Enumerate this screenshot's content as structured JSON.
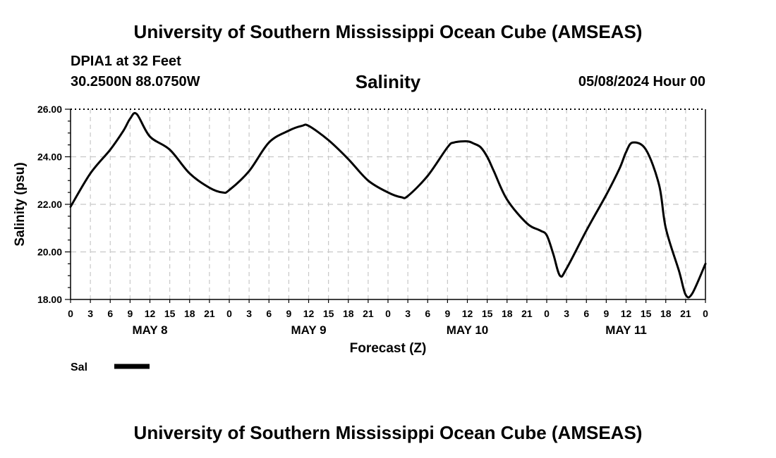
{
  "header": {
    "title": "University of Southern Mississippi Ocean Cube (AMSEAS)",
    "station": "DPIA1 at 32 Feet",
    "coords": "30.2500N  88.0750W",
    "variable": "Salinity",
    "datetime": "05/08/2024 Hour 00"
  },
  "footer": {
    "title": "University of Southern Mississippi Ocean Cube (AMSEAS)"
  },
  "chart_data": {
    "type": "line",
    "title": "Salinity",
    "xlabel": "Forecast (Z)",
    "ylabel": "Salinity (psu)",
    "xlim": [
      0,
      96
    ],
    "ylim": [
      18,
      26
    ],
    "yticks": [
      18,
      20,
      22,
      24,
      26
    ],
    "ytick_labels": [
      "18.00",
      "20.00",
      "22.00",
      "24.00",
      "26.00"
    ],
    "xtick_labels": [
      "0",
      "3",
      "6",
      "9",
      "12",
      "15",
      "18",
      "21",
      "0",
      "3",
      "6",
      "9",
      "12",
      "15",
      "18",
      "21",
      "0",
      "3",
      "6",
      "9",
      "12",
      "15",
      "18",
      "21",
      "0",
      "3",
      "6",
      "9",
      "12",
      "15",
      "18",
      "21",
      "0"
    ],
    "day_labels": [
      {
        "label": "MAY 8",
        "hour": 12
      },
      {
        "label": "MAY 9",
        "hour": 36
      },
      {
        "label": "MAY 10",
        "hour": 60
      },
      {
        "label": "MAY 11",
        "hour": 84
      }
    ],
    "grid": true,
    "series": [
      {
        "name": "Sal",
        "color": "#000000",
        "x": [
          0,
          3,
          6,
          8,
          9,
          10,
          12,
          15,
          18,
          21,
          23,
          24,
          27,
          30,
          33,
          35,
          36,
          39,
          42,
          45,
          48,
          50,
          51,
          54,
          57,
          58,
          60,
          61,
          62,
          63,
          64,
          66,
          69,
          71,
          72,
          73,
          74,
          75,
          78,
          81,
          83,
          84,
          85,
          87,
          89,
          90,
          92,
          93,
          94,
          96
        ],
        "values": [
          21.9,
          23.3,
          24.3,
          25.1,
          25.6,
          25.8,
          24.85,
          24.3,
          23.3,
          22.7,
          22.5,
          22.6,
          23.4,
          24.6,
          25.1,
          25.3,
          25.3,
          24.7,
          23.9,
          23.0,
          22.5,
          22.3,
          22.35,
          23.2,
          24.4,
          24.6,
          24.65,
          24.55,
          24.4,
          24.0,
          23.4,
          22.2,
          21.2,
          20.9,
          20.7,
          19.9,
          19.0,
          19.3,
          20.9,
          22.4,
          23.5,
          24.2,
          24.6,
          24.3,
          22.8,
          21.0,
          19.2,
          18.2,
          18.25,
          19.5
        ]
      }
    ],
    "legend": [
      {
        "label": "Sal",
        "position": "bottom-left"
      }
    ]
  }
}
